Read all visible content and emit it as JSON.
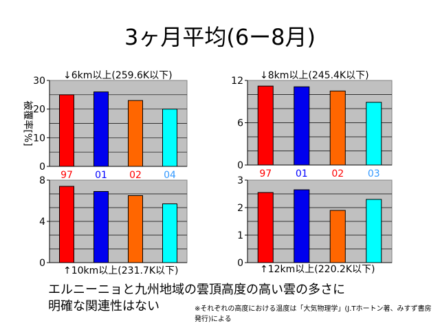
{
  "slide": {
    "title": "3ヶ月平均(6ー8月)",
    "conclusion_line1": "エルニーニョと九州地域の雲頂高度の高い雲の多さに",
    "conclusion_line2": "明確な関連性はない",
    "footnote": "※それぞれの高度における温度は「大気物理学」(J.Tホートン著、みすず書房発行)による"
  },
  "colors": {
    "red": "#ff0000",
    "blue": "#0000ee",
    "orange": "#ff6600",
    "cyan": "#00ffff",
    "plot_bg": "#c0c0c0",
    "year_red": "#ff0000",
    "year_blue": "#0000ff",
    "year_cyan": "#3399ff"
  },
  "chart_data": [
    {
      "type": "bar",
      "title": "↓6km以上(259.6K以下)",
      "ylabel": "被覆率[%]",
      "categories": [
        "97",
        "01",
        "02",
        "04"
      ],
      "values": [
        25,
        26,
        23,
        20
      ],
      "ylim": [
        0,
        30
      ],
      "yticks": [
        0,
        10,
        20,
        30
      ],
      "grid": true
    },
    {
      "type": "bar",
      "title": "↓8km以上(245.4K以下)",
      "ylabel": "",
      "categories": [
        "97",
        "01",
        "02",
        "03"
      ],
      "values": [
        11.2,
        11.1,
        10.5,
        8.9
      ],
      "ylim": [
        0,
        12
      ],
      "yticks": [
        0,
        6,
        12
      ],
      "grid": true
    },
    {
      "type": "bar",
      "title": "↑10km以上(231.7K以下)",
      "ylabel": "",
      "categories": [
        "97",
        "01",
        "02",
        "04"
      ],
      "values": [
        7.4,
        6.9,
        6.5,
        5.7
      ],
      "ylim": [
        0,
        8
      ],
      "yticks": [
        0,
        4,
        8
      ],
      "grid": true
    },
    {
      "type": "bar",
      "title": "↑12km以上(220.2K以下)",
      "ylabel": "",
      "categories": [
        "97",
        "01",
        "02",
        "03"
      ],
      "values": [
        2.55,
        2.65,
        1.9,
        2.3
      ],
      "ylim": [
        0,
        3
      ],
      "yticks": [
        0,
        1,
        2,
        3
      ],
      "grid": true
    }
  ]
}
